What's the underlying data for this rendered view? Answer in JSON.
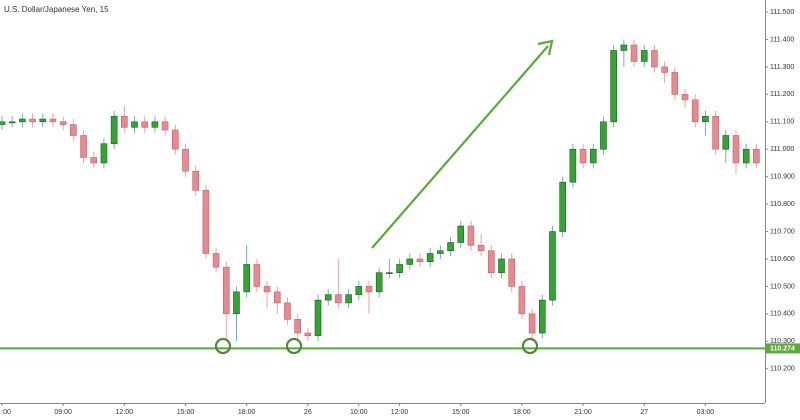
{
  "chart_data": {
    "type": "candlestick",
    "title": "U.S. Dollar/Japanese Yen, 15",
    "categories": [
      ":00",
      null,
      null,
      null,
      null,
      null,
      "09:00",
      null,
      null,
      null,
      null,
      null,
      "12:00",
      null,
      null,
      null,
      null,
      null,
      "15:00",
      null,
      null,
      null,
      null,
      null,
      "18:00",
      null,
      null,
      null,
      null,
      null,
      "26",
      null,
      null,
      null,
      null,
      "10:00",
      null,
      null,
      null,
      "12:00",
      null,
      null,
      null,
      null,
      null,
      "15:00",
      null,
      null,
      null,
      null,
      null,
      "18:00",
      null,
      null,
      null,
      null,
      null,
      "21:00",
      null,
      null,
      null,
      null,
      null,
      "27",
      null,
      null,
      null,
      null,
      null,
      "03:00",
      null,
      null,
      null,
      null,
      null
    ],
    "open": [
      111.09,
      111.1,
      111.1,
      111.11,
      111.1,
      111.11,
      111.1,
      111.09,
      111.05,
      110.97,
      110.95,
      111.02,
      111.12,
      111.08,
      111.1,
      111.08,
      111.1,
      111.07,
      111.0,
      110.92,
      110.85,
      110.62,
      110.57,
      110.4,
      110.48,
      110.58,
      110.5,
      110.48,
      110.44,
      110.38,
      110.33,
      110.32,
      110.45,
      110.47,
      110.44,
      110.47,
      110.5,
      110.48,
      110.55,
      110.55,
      110.58,
      110.6,
      110.59,
      110.62,
      110.63,
      110.66,
      110.72,
      110.65,
      110.63,
      110.55,
      110.6,
      110.5,
      110.4,
      110.33,
      110.45,
      110.7,
      110.88,
      111.0,
      110.95,
      111.0,
      111.1,
      111.36,
      111.38,
      111.32,
      111.36,
      111.3,
      111.28,
      111.2,
      111.18,
      111.1,
      111.12,
      111.0,
      111.05,
      110.95,
      111.0
    ],
    "high": [
      111.12,
      111.12,
      111.13,
      111.13,
      111.13,
      111.13,
      111.12,
      111.11,
      111.07,
      110.99,
      111.04,
      111.14,
      111.16,
      111.12,
      111.12,
      111.12,
      111.12,
      111.09,
      111.02,
      110.94,
      110.87,
      110.64,
      110.59,
      110.5,
      110.65,
      110.6,
      110.52,
      110.5,
      110.46,
      110.4,
      110.35,
      110.47,
      110.49,
      110.6,
      110.49,
      110.52,
      110.52,
      110.57,
      110.6,
      110.6,
      110.62,
      110.62,
      110.64,
      110.65,
      110.68,
      110.74,
      110.74,
      110.69,
      110.65,
      110.62,
      110.62,
      110.52,
      110.42,
      110.47,
      110.72,
      110.9,
      111.02,
      111.02,
      111.02,
      111.12,
      111.38,
      111.4,
      111.4,
      111.38,
      111.38,
      111.32,
      111.3,
      111.22,
      111.2,
      111.14,
      111.14,
      111.07,
      111.07,
      111.02,
      111.02
    ],
    "low": [
      111.07,
      111.08,
      111.08,
      111.08,
      111.08,
      111.08,
      111.07,
      111.03,
      110.95,
      110.93,
      110.93,
      111.0,
      111.06,
      111.06,
      111.06,
      111.06,
      111.05,
      110.98,
      110.9,
      110.83,
      110.6,
      110.55,
      110.3,
      110.3,
      110.46,
      110.48,
      110.42,
      110.4,
      110.36,
      110.3,
      110.3,
      110.3,
      110.43,
      110.42,
      110.42,
      110.45,
      110.4,
      110.46,
      110.53,
      110.53,
      110.56,
      110.57,
      110.57,
      110.6,
      110.61,
      110.64,
      110.63,
      110.61,
      110.53,
      110.53,
      110.48,
      110.38,
      110.3,
      110.31,
      110.43,
      110.68,
      110.86,
      110.93,
      110.93,
      110.98,
      111.08,
      111.3,
      111.3,
      111.3,
      111.28,
      111.24,
      111.18,
      111.15,
      111.08,
      111.05,
      110.98,
      110.95,
      110.91,
      110.93,
      110.93
    ],
    "close": [
      111.1,
      111.1,
      111.11,
      111.1,
      111.11,
      111.1,
      111.09,
      111.05,
      110.97,
      110.95,
      111.02,
      111.12,
      111.08,
      111.1,
      111.08,
      111.1,
      111.07,
      111.0,
      110.92,
      110.85,
      110.62,
      110.57,
      110.4,
      110.48,
      110.58,
      110.5,
      110.48,
      110.44,
      110.38,
      110.33,
      110.32,
      110.45,
      110.47,
      110.44,
      110.47,
      110.5,
      110.48,
      110.55,
      110.55,
      110.58,
      110.6,
      110.59,
      110.62,
      110.63,
      110.66,
      110.72,
      110.65,
      110.63,
      110.55,
      110.6,
      110.5,
      110.4,
      110.33,
      110.45,
      110.7,
      110.88,
      111.0,
      110.95,
      111.0,
      111.1,
      111.36,
      111.38,
      111.32,
      111.36,
      111.3,
      111.28,
      111.2,
      111.18,
      111.1,
      111.12,
      111.0,
      111.05,
      110.95,
      111.0,
      110.95
    ],
    "up_color": "#36a336",
    "down_color": "#e48a91",
    "ylim": [
      110.075,
      111.544
    ],
    "yticks": [
      {
        "value": 110.2,
        "label": "110.200"
      },
      {
        "value": 110.3,
        "label": "110.300"
      },
      {
        "value": 110.4,
        "label": "110.400"
      },
      {
        "value": 110.5,
        "label": "110.500"
      },
      {
        "value": 110.6,
        "label": "110.600"
      },
      {
        "value": 110.7,
        "label": "110.700"
      },
      {
        "value": 110.8,
        "label": "110.800"
      },
      {
        "value": 110.9,
        "label": "110.900"
      },
      {
        "value": 111.0,
        "label": "111.000"
      },
      {
        "value": 111.1,
        "label": "111.100"
      },
      {
        "value": 111.2,
        "label": "111.200"
      },
      {
        "value": 111.3,
        "label": "111.300"
      },
      {
        "value": 111.4,
        "label": "111.400"
      },
      {
        "value": 111.5,
        "label": "111.500"
      }
    ],
    "hline": {
      "value": 110.274,
      "color": "#5fa83a"
    }
  }
}
